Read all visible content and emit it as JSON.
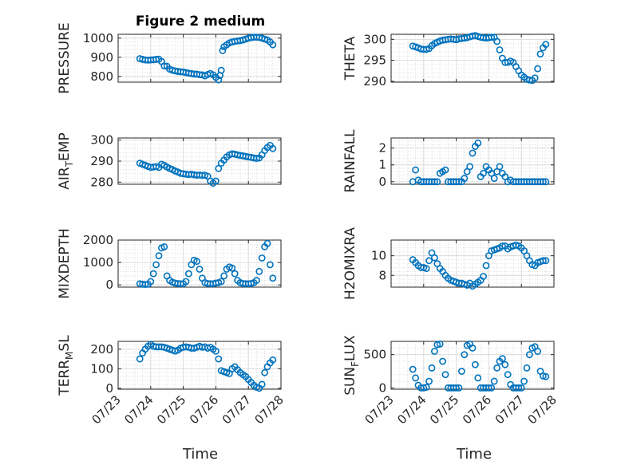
{
  "figure": {
    "title": "Figure 2 medium",
    "x_tick_labels": [
      "07/23",
      "07/24",
      "07/25",
      "07/26",
      "07/27",
      "07/28"
    ],
    "x_ticks": [
      "2021-07-23",
      "2021-07-24",
      "2021-07-25",
      "2021-07-26",
      "2021-07-27",
      "2021-07-28"
    ],
    "xlabel": "Time",
    "marker_color": "#0072BD",
    "grid": true,
    "minor_grid": true
  },
  "chart_data": [
    {
      "type": "scatter",
      "ylabel": "PRESSURE",
      "ylabel_sub": "",
      "ylim": [
        770,
        1020
      ],
      "yticks": [
        800,
        900,
        1000
      ],
      "xlim": [
        "2021-07-23T00:00",
        "2021-07-28T00:00"
      ],
      "x": [
        "2021-07-23T16:00",
        "2021-07-23T18:00",
        "2021-07-23T20:00",
        "2021-07-23T22:00",
        "2021-07-24T00:00",
        "2021-07-24T02:00",
        "2021-07-24T04:00",
        "2021-07-24T06:00",
        "2021-07-24T08:00",
        "2021-07-24T10:00",
        "2021-07-24T12:00",
        "2021-07-24T14:00",
        "2021-07-24T16:00",
        "2021-07-24T18:00",
        "2021-07-24T20:00",
        "2021-07-24T22:00",
        "2021-07-25T00:00",
        "2021-07-25T02:00",
        "2021-07-25T04:00",
        "2021-07-25T06:00",
        "2021-07-25T08:00",
        "2021-07-25T10:00",
        "2021-07-25T12:00",
        "2021-07-25T14:00",
        "2021-07-25T16:00",
        "2021-07-25T18:00",
        "2021-07-25T20:00",
        "2021-07-25T22:00",
        "2021-07-26T00:00",
        "2021-07-26T02:00",
        "2021-07-26T03:00",
        "2021-07-26T04:00",
        "2021-07-26T05:00",
        "2021-07-26T06:00",
        "2021-07-26T08:00",
        "2021-07-26T10:00",
        "2021-07-26T12:00",
        "2021-07-26T14:00",
        "2021-07-26T16:00",
        "2021-07-26T18:00",
        "2021-07-26T20:00",
        "2021-07-26T22:00",
        "2021-07-27T00:00",
        "2021-07-27T02:00",
        "2021-07-27T04:00",
        "2021-07-27T06:00",
        "2021-07-27T08:00",
        "2021-07-27T10:00",
        "2021-07-27T12:00",
        "2021-07-27T14:00",
        "2021-07-27T16:00",
        "2021-07-27T18:00"
      ],
      "values": [
        893,
        889,
        886,
        885,
        886,
        887,
        889,
        890,
        878,
        855,
        853,
        838,
        832,
        829,
        826,
        824,
        823,
        820,
        817,
        815,
        812,
        812,
        809,
        808,
        803,
        810,
        815,
        808,
        795,
        782,
        805,
        832,
        935,
        955,
        965,
        975,
        980,
        983,
        985,
        987,
        990,
        995,
        1000,
        1003,
        1005,
        1005,
        1004,
        1000,
        995,
        990,
        980,
        965
      ]
    },
    {
      "type": "scatter",
      "ylabel": "THETA",
      "ylabel_sub": "",
      "ylim": [
        289.8,
        301.2
      ],
      "yticks": [
        290,
        295,
        300
      ],
      "xlim": [
        "2021-07-23T00:00",
        "2021-07-28T00:00"
      ],
      "x": [
        "2021-07-23T16:00",
        "2021-07-23T18:00",
        "2021-07-23T20:00",
        "2021-07-23T22:00",
        "2021-07-24T00:00",
        "2021-07-24T02:00",
        "2021-07-24T04:00",
        "2021-07-24T06:00",
        "2021-07-24T08:00",
        "2021-07-24T10:00",
        "2021-07-24T12:00",
        "2021-07-24T14:00",
        "2021-07-24T16:00",
        "2021-07-24T18:00",
        "2021-07-24T20:00",
        "2021-07-24T22:00",
        "2021-07-25T00:00",
        "2021-07-25T02:00",
        "2021-07-25T04:00",
        "2021-07-25T06:00",
        "2021-07-25T08:00",
        "2021-07-25T10:00",
        "2021-07-25T12:00",
        "2021-07-25T14:00",
        "2021-07-25T16:00",
        "2021-07-25T18:00",
        "2021-07-25T20:00",
        "2021-07-25T22:00",
        "2021-07-26T00:00",
        "2021-07-26T02:00",
        "2021-07-26T04:00",
        "2021-07-26T06:00",
        "2021-07-26T08:00",
        "2021-07-26T10:00",
        "2021-07-26T12:00",
        "2021-07-26T14:00",
        "2021-07-26T16:00",
        "2021-07-26T18:00",
        "2021-07-26T20:00",
        "2021-07-26T22:00",
        "2021-07-27T00:00",
        "2021-07-27T02:00",
        "2021-07-27T04:00",
        "2021-07-27T06:00",
        "2021-07-27T08:00",
        "2021-07-27T10:00",
        "2021-07-27T12:00",
        "2021-07-27T14:00",
        "2021-07-27T16:00",
        "2021-07-27T18:00"
      ],
      "values": [
        298.4,
        298.2,
        298.0,
        297.7,
        297.6,
        297.6,
        297.8,
        298.5,
        299.0,
        299.3,
        299.6,
        299.8,
        299.9,
        300.0,
        300.1,
        300.0,
        299.9,
        300.1,
        300.2,
        300.3,
        300.4,
        300.6,
        300.8,
        300.9,
        300.7,
        300.5,
        300.4,
        300.3,
        300.4,
        300.5,
        300.5,
        299.5,
        297.5,
        295.5,
        294.5,
        294.5,
        294.8,
        294.5,
        293.5,
        292.5,
        291.5,
        291.0,
        290.5,
        290.3,
        290.2,
        290.8,
        293.0,
        296.5,
        298.0,
        298.8
      ]
    },
    {
      "type": "scatter",
      "ylabel": "AIR",
      "ylabel_sub": "T",
      "ylabel_rest": "EMP",
      "ylim": [
        279,
        301
      ],
      "yticks": [
        280,
        290,
        300
      ],
      "xlim": [
        "2021-07-23T00:00",
        "2021-07-28T00:00"
      ],
      "x": [
        "2021-07-23T16:00",
        "2021-07-23T18:00",
        "2021-07-23T20:00",
        "2021-07-23T22:00",
        "2021-07-24T00:00",
        "2021-07-24T02:00",
        "2021-07-24T04:00",
        "2021-07-24T06:00",
        "2021-07-24T08:00",
        "2021-07-24T10:00",
        "2021-07-24T12:00",
        "2021-07-24T14:00",
        "2021-07-24T16:00",
        "2021-07-24T18:00",
        "2021-07-24T20:00",
        "2021-07-24T22:00",
        "2021-07-25T00:00",
        "2021-07-25T02:00",
        "2021-07-25T04:00",
        "2021-07-25T06:00",
        "2021-07-25T08:00",
        "2021-07-25T10:00",
        "2021-07-25T12:00",
        "2021-07-25T14:00",
        "2021-07-25T16:00",
        "2021-07-25T18:00",
        "2021-07-25T20:00",
        "2021-07-25T22:00",
        "2021-07-26T00:00",
        "2021-07-26T02:00",
        "2021-07-26T04:00",
        "2021-07-26T06:00",
        "2021-07-26T08:00",
        "2021-07-26T10:00",
        "2021-07-26T12:00",
        "2021-07-26T14:00",
        "2021-07-26T16:00",
        "2021-07-26T18:00",
        "2021-07-26T20:00",
        "2021-07-26T22:00",
        "2021-07-27T00:00",
        "2021-07-27T02:00",
        "2021-07-27T04:00",
        "2021-07-27T06:00",
        "2021-07-27T08:00",
        "2021-07-27T10:00",
        "2021-07-27T12:00",
        "2021-07-27T14:00",
        "2021-07-27T16:00",
        "2021-07-27T18:00"
      ],
      "values": [
        289.0,
        288.5,
        288.0,
        287.5,
        287.0,
        287.2,
        287.4,
        287.0,
        288.5,
        288.0,
        287.2,
        286.5,
        286.0,
        285.3,
        284.8,
        284.2,
        284.0,
        283.8,
        283.6,
        283.8,
        283.5,
        283.3,
        283.4,
        283.2,
        283.3,
        282.8,
        280.5,
        279.5,
        280.5,
        286.5,
        289.0,
        290.5,
        292.0,
        293.0,
        293.5,
        293.3,
        293.0,
        292.7,
        292.5,
        292.2,
        292.0,
        291.8,
        291.5,
        291.3,
        291.5,
        293.0,
        295.0,
        296.5,
        297.5,
        296.0
      ]
    },
    {
      "type": "scatter",
      "ylabel": "RAINFALL",
      "ylabel_sub": "",
      "ylim": [
        -0.15,
        2.6
      ],
      "yticks": [
        0,
        1,
        2
      ],
      "xlim": [
        "2021-07-23T00:00",
        "2021-07-28T00:00"
      ],
      "x": [
        "2021-07-23T16:00",
        "2021-07-23T18:00",
        "2021-07-23T20:00",
        "2021-07-23T22:00",
        "2021-07-24T00:00",
        "2021-07-24T02:00",
        "2021-07-24T04:00",
        "2021-07-24T06:00",
        "2021-07-24T08:00",
        "2021-07-24T10:00",
        "2021-07-24T12:00",
        "2021-07-24T14:00",
        "2021-07-24T16:00",
        "2021-07-24T18:00",
        "2021-07-24T20:00",
        "2021-07-24T22:00",
        "2021-07-25T00:00",
        "2021-07-25T02:00",
        "2021-07-25T04:00",
        "2021-07-25T06:00",
        "2021-07-25T08:00",
        "2021-07-25T10:00",
        "2021-07-25T12:00",
        "2021-07-25T14:00",
        "2021-07-25T16:00",
        "2021-07-25T18:00",
        "2021-07-25T20:00",
        "2021-07-25T22:00",
        "2021-07-26T00:00",
        "2021-07-26T02:00",
        "2021-07-26T04:00",
        "2021-07-26T06:00",
        "2021-07-26T08:00",
        "2021-07-26T10:00",
        "2021-07-26T12:00",
        "2021-07-26T14:00",
        "2021-07-26T16:00",
        "2021-07-26T18:00",
        "2021-07-26T20:00",
        "2021-07-26T22:00",
        "2021-07-27T00:00",
        "2021-07-27T02:00",
        "2021-07-27T04:00",
        "2021-07-27T06:00",
        "2021-07-27T08:00",
        "2021-07-27T10:00",
        "2021-07-27T12:00",
        "2021-07-27T14:00",
        "2021-07-27T16:00",
        "2021-07-27T18:00"
      ],
      "values": [
        0.0,
        0.7,
        0.1,
        0.0,
        0.0,
        0.0,
        0.0,
        0.0,
        0.0,
        0.0,
        0.5,
        0.6,
        0.7,
        0.0,
        0.0,
        0.0,
        0.0,
        0.0,
        0.0,
        0.2,
        0.6,
        0.9,
        1.7,
        2.1,
        2.3,
        0.3,
        0.5,
        0.9,
        0.7,
        0.5,
        0.2,
        0.6,
        0.9,
        0.5,
        0.3,
        0.0,
        0.1,
        0.0,
        0.0,
        0.0,
        0.0,
        0.0,
        0.0,
        0.0,
        0.0,
        0.0,
        0.0,
        0.0,
        0.0,
        0.0
      ]
    },
    {
      "type": "scatter",
      "ylabel": "MIXDEPTH",
      "ylabel_sub": "",
      "ylim": [
        -100,
        2000
      ],
      "yticks": [
        0,
        1000,
        2000
      ],
      "xlim": [
        "2021-07-23T00:00",
        "2021-07-28T00:00"
      ],
      "x": [
        "2021-07-23T16:00",
        "2021-07-23T18:00",
        "2021-07-23T20:00",
        "2021-07-23T22:00",
        "2021-07-24T00:00",
        "2021-07-24T02:00",
        "2021-07-24T04:00",
        "2021-07-24T06:00",
        "2021-07-24T08:00",
        "2021-07-24T10:00",
        "2021-07-24T12:00",
        "2021-07-24T14:00",
        "2021-07-24T16:00",
        "2021-07-24T18:00",
        "2021-07-24T20:00",
        "2021-07-24T22:00",
        "2021-07-25T00:00",
        "2021-07-25T02:00",
        "2021-07-25T04:00",
        "2021-07-25T06:00",
        "2021-07-25T08:00",
        "2021-07-25T10:00",
        "2021-07-25T12:00",
        "2021-07-25T14:00",
        "2021-07-25T16:00",
        "2021-07-25T18:00",
        "2021-07-25T20:00",
        "2021-07-25T22:00",
        "2021-07-26T00:00",
        "2021-07-26T02:00",
        "2021-07-26T04:00",
        "2021-07-26T06:00",
        "2021-07-26T08:00",
        "2021-07-26T10:00",
        "2021-07-26T12:00",
        "2021-07-26T14:00",
        "2021-07-26T16:00",
        "2021-07-26T18:00",
        "2021-07-26T20:00",
        "2021-07-26T22:00",
        "2021-07-27T00:00",
        "2021-07-27T02:00",
        "2021-07-27T04:00",
        "2021-07-27T06:00",
        "2021-07-27T08:00",
        "2021-07-27T10:00",
        "2021-07-27T12:00",
        "2021-07-27T14:00",
        "2021-07-27T16:00",
        "2021-07-27T18:00"
      ],
      "values": [
        50,
        30,
        20,
        30,
        150,
        500,
        900,
        1300,
        1650,
        1700,
        400,
        200,
        120,
        80,
        60,
        50,
        50,
        150,
        500,
        900,
        1100,
        1050,
        700,
        300,
        100,
        60,
        50,
        50,
        80,
        100,
        150,
        400,
        700,
        800,
        750,
        500,
        200,
        100,
        60,
        50,
        50,
        60,
        100,
        200,
        600,
        1200,
        1700,
        1850,
        900,
        300
      ]
    },
    {
      "type": "scatter",
      "ylabel": "H2OMIXRA",
      "ylabel_sub": "",
      "ylim": [
        6.8,
        11.6
      ],
      "yticks": [
        8,
        10
      ],
      "xlim": [
        "2021-07-23T00:00",
        "2021-07-28T00:00"
      ],
      "x": [
        "2021-07-23T16:00",
        "2021-07-23T18:00",
        "2021-07-23T20:00",
        "2021-07-23T22:00",
        "2021-07-24T00:00",
        "2021-07-24T02:00",
        "2021-07-24T04:00",
        "2021-07-24T06:00",
        "2021-07-24T08:00",
        "2021-07-24T10:00",
        "2021-07-24T12:00",
        "2021-07-24T14:00",
        "2021-07-24T16:00",
        "2021-07-24T18:00",
        "2021-07-24T20:00",
        "2021-07-24T22:00",
        "2021-07-25T00:00",
        "2021-07-25T02:00",
        "2021-07-25T04:00",
        "2021-07-25T06:00",
        "2021-07-25T08:00",
        "2021-07-25T10:00",
        "2021-07-25T12:00",
        "2021-07-25T14:00",
        "2021-07-25T16:00",
        "2021-07-25T18:00",
        "2021-07-25T20:00",
        "2021-07-25T22:00",
        "2021-07-26T00:00",
        "2021-07-26T02:00",
        "2021-07-26T04:00",
        "2021-07-26T06:00",
        "2021-07-26T08:00",
        "2021-07-26T10:00",
        "2021-07-26T12:00",
        "2021-07-26T14:00",
        "2021-07-26T16:00",
        "2021-07-26T18:00",
        "2021-07-26T20:00",
        "2021-07-26T22:00",
        "2021-07-27T00:00",
        "2021-07-27T02:00",
        "2021-07-27T04:00",
        "2021-07-27T06:00",
        "2021-07-27T08:00",
        "2021-07-27T10:00",
        "2021-07-27T12:00",
        "2021-07-27T14:00",
        "2021-07-27T16:00",
        "2021-07-27T18:00"
      ],
      "values": [
        9.6,
        9.3,
        9.0,
        8.8,
        8.8,
        8.7,
        9.5,
        10.3,
        9.8,
        9.2,
        8.7,
        8.4,
        8.0,
        7.7,
        7.5,
        7.4,
        7.3,
        7.2,
        7.2,
        7.1,
        7.0,
        7.2,
        6.9,
        7.1,
        7.3,
        7.5,
        7.9,
        9.0,
        10.0,
        10.5,
        10.6,
        10.7,
        10.8,
        11.0,
        11.0,
        10.7,
        10.9,
        11.0,
        11.1,
        11.0,
        10.8,
        10.5,
        10.0,
        9.5,
        9.1,
        9.0,
        9.3,
        9.4,
        9.5,
        9.5
      ]
    },
    {
      "type": "scatter",
      "ylabel": "TERR",
      "ylabel_sub": "M",
      "ylabel_rest": "SL",
      "ylim": [
        -5,
        240
      ],
      "yticks": [
        0,
        100,
        200
      ],
      "xlim": [
        "2021-07-23T00:00",
        "2021-07-28T00:00"
      ],
      "x": [
        "2021-07-23T16:00",
        "2021-07-23T18:00",
        "2021-07-23T20:00",
        "2021-07-23T22:00",
        "2021-07-24T00:00",
        "2021-07-24T02:00",
        "2021-07-24T04:00",
        "2021-07-24T06:00",
        "2021-07-24T08:00",
        "2021-07-24T10:00",
        "2021-07-24T12:00",
        "2021-07-24T14:00",
        "2021-07-24T16:00",
        "2021-07-24T18:00",
        "2021-07-24T20:00",
        "2021-07-24T22:00",
        "2021-07-25T00:00",
        "2021-07-25T02:00",
        "2021-07-25T04:00",
        "2021-07-25T06:00",
        "2021-07-25T08:00",
        "2021-07-25T10:00",
        "2021-07-25T12:00",
        "2021-07-25T14:00",
        "2021-07-25T16:00",
        "2021-07-25T18:00",
        "2021-07-25T20:00",
        "2021-07-25T22:00",
        "2021-07-26T00:00",
        "2021-07-26T02:00",
        "2021-07-26T04:00",
        "2021-07-26T06:00",
        "2021-07-26T08:00",
        "2021-07-26T10:00",
        "2021-07-26T12:00",
        "2021-07-26T14:00",
        "2021-07-26T16:00",
        "2021-07-26T18:00",
        "2021-07-26T20:00",
        "2021-07-26T22:00",
        "2021-07-27T00:00",
        "2021-07-27T02:00",
        "2021-07-27T04:00",
        "2021-07-27T06:00",
        "2021-07-27T08:00",
        "2021-07-27T10:00",
        "2021-07-27T12:00",
        "2021-07-27T14:00",
        "2021-07-27T16:00",
        "2021-07-27T18:00"
      ],
      "values": [
        150,
        180,
        200,
        215,
        225,
        215,
        212,
        212,
        212,
        210,
        205,
        200,
        195,
        190,
        195,
        205,
        210,
        212,
        210,
        205,
        205,
        210,
        215,
        210,
        212,
        205,
        210,
        200,
        190,
        150,
        90,
        85,
        80,
        75,
        100,
        110,
        95,
        80,
        70,
        60,
        45,
        30,
        15,
        5,
        0,
        20,
        80,
        110,
        130,
        145
      ]
    },
    {
      "type": "scatter",
      "ylabel": "SUN",
      "ylabel_sub": "F",
      "ylabel_rest": "LUX",
      "ylim": [
        -20,
        700
      ],
      "yticks": [
        0,
        500
      ],
      "xlim": [
        "2021-07-23T00:00",
        "2021-07-28T00:00"
      ],
      "x": [
        "2021-07-23T16:00",
        "2021-07-23T18:00",
        "2021-07-23T20:00",
        "2021-07-23T22:00",
        "2021-07-24T00:00",
        "2021-07-24T02:00",
        "2021-07-24T04:00",
        "2021-07-24T06:00",
        "2021-07-24T08:00",
        "2021-07-24T10:00",
        "2021-07-24T12:00",
        "2021-07-24T14:00",
        "2021-07-24T16:00",
        "2021-07-24T18:00",
        "2021-07-24T20:00",
        "2021-07-24T22:00",
        "2021-07-25T00:00",
        "2021-07-25T02:00",
        "2021-07-25T04:00",
        "2021-07-25T06:00",
        "2021-07-25T08:00",
        "2021-07-25T10:00",
        "2021-07-25T12:00",
        "2021-07-25T14:00",
        "2021-07-25T16:00",
        "2021-07-25T18:00",
        "2021-07-25T20:00",
        "2021-07-25T22:00",
        "2021-07-26T00:00",
        "2021-07-26T02:00",
        "2021-07-26T04:00",
        "2021-07-26T06:00",
        "2021-07-26T08:00",
        "2021-07-26T10:00",
        "2021-07-26T12:00",
        "2021-07-26T14:00",
        "2021-07-26T16:00",
        "2021-07-26T18:00",
        "2021-07-26T20:00",
        "2021-07-26T22:00",
        "2021-07-27T00:00",
        "2021-07-27T02:00",
        "2021-07-27T04:00",
        "2021-07-27T06:00",
        "2021-07-27T08:00",
        "2021-07-27T10:00",
        "2021-07-27T12:00",
        "2021-07-27T14:00",
        "2021-07-27T16:00",
        "2021-07-27T18:00"
      ],
      "values": [
        280,
        150,
        40,
        0,
        0,
        10,
        100,
        300,
        550,
        650,
        660,
        400,
        200,
        0,
        0,
        0,
        0,
        0,
        250,
        500,
        640,
        660,
        600,
        350,
        150,
        0,
        0,
        0,
        0,
        0,
        100,
        300,
        400,
        440,
        350,
        200,
        50,
        0,
        0,
        0,
        0,
        100,
        300,
        500,
        600,
        620,
        550,
        250,
        180,
        170
      ]
    }
  ]
}
